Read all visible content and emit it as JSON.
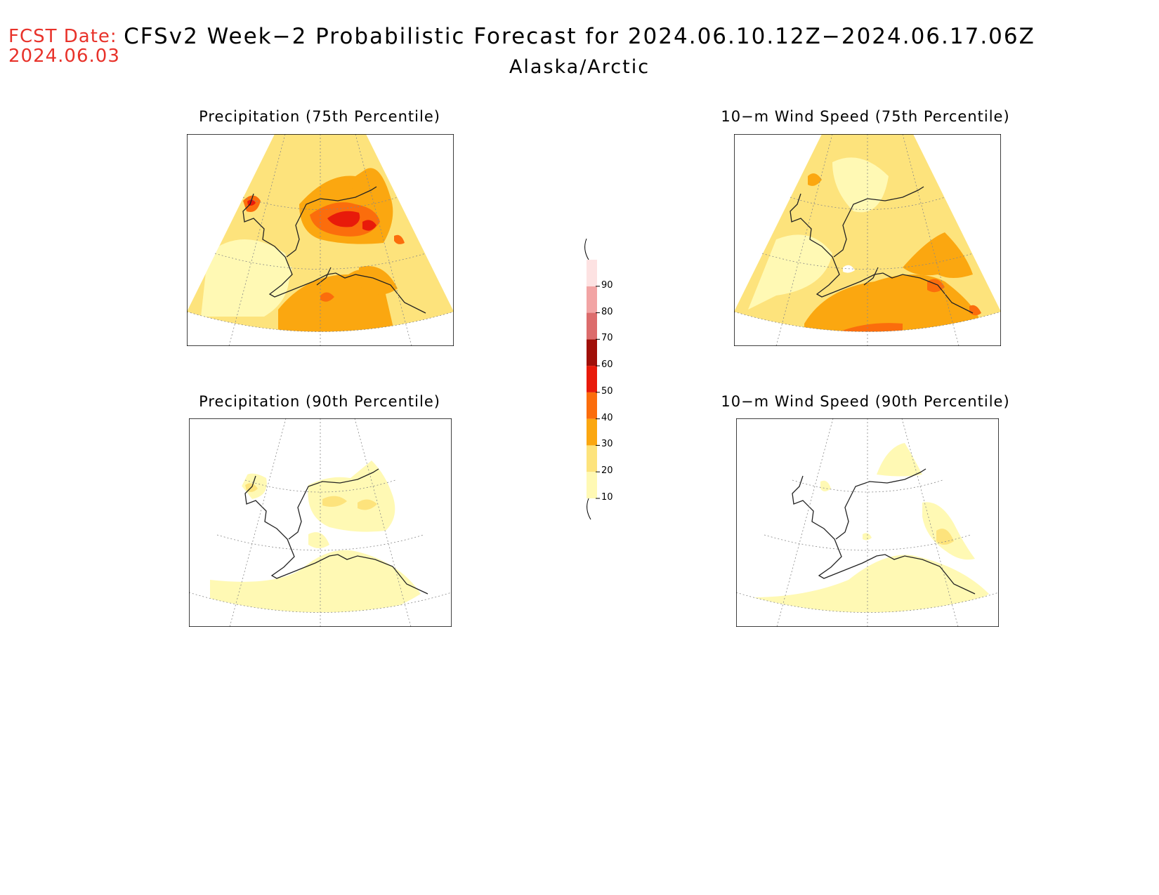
{
  "forecast_date": {
    "label": "FCST Date:",
    "value": "2024.06.03"
  },
  "title": "CFSv2 Week−2 Probabilistic Forecast for 2024.06.10.12Z−2024.06.17.06Z",
  "subtitle": "Alaska/Arctic",
  "panels": [
    {
      "title": "Precipitation (75th Percentile)"
    },
    {
      "title": "10−m Wind Speed (75th Percentile)"
    },
    {
      "title": "Precipitation (90th Percentile)"
    },
    {
      "title": "10−m Wind Speed (90th Percentile)"
    }
  ],
  "legend": {
    "levels": [
      "10",
      "20",
      "30",
      "40",
      "50",
      "60",
      "70",
      "80",
      "90"
    ],
    "colors": [
      "#fff9b4",
      "#fde37c",
      "#fba710",
      "#fb6d0c",
      "#e81a0a",
      "#a00f08",
      "#dc6c6c",
      "#f2a4a4",
      "#fde2e2"
    ]
  }
}
